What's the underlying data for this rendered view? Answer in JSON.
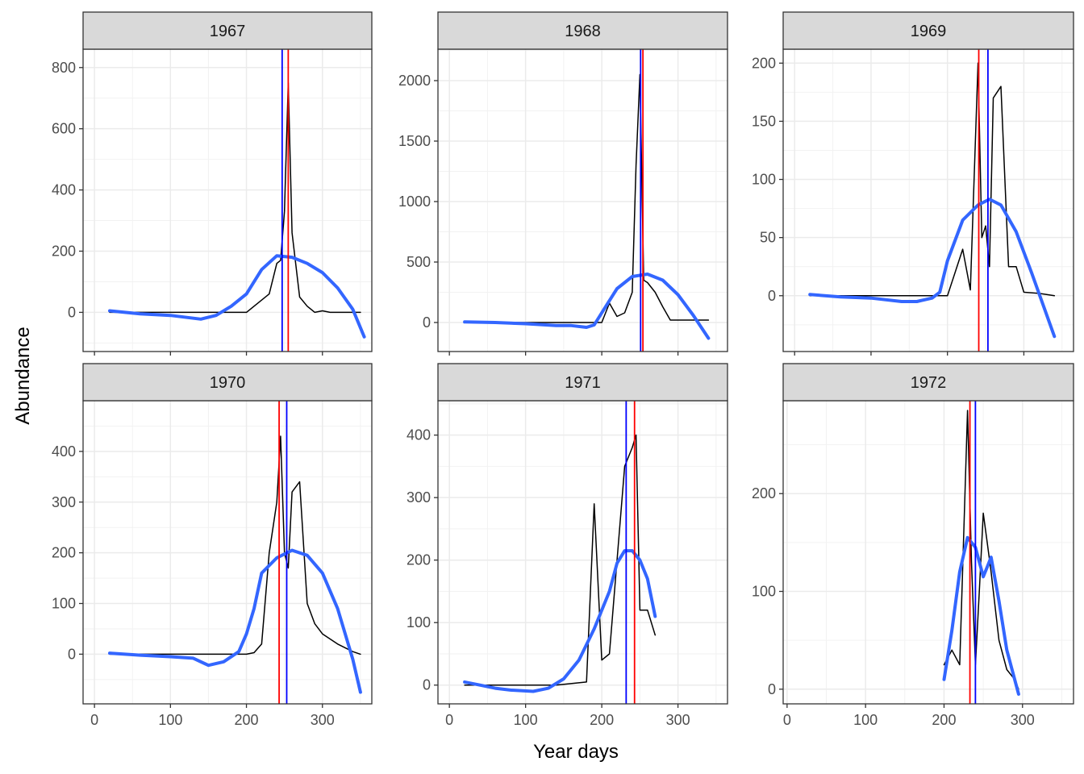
{
  "figure": {
    "xlabel": "Year days",
    "ylabel": "Abundance"
  },
  "chart_data": [
    {
      "type": "line",
      "panel": "1967",
      "xlim": [
        -15,
        365
      ],
      "ylim": [
        -128,
        860
      ],
      "xticks": [
        0,
        100,
        200,
        300
      ],
      "yticks": [
        0,
        200,
        400,
        600,
        800
      ],
      "grid": true,
      "series": [
        {
          "color": "#000000",
          "x": [
            20,
            60,
            100,
            140,
            180,
            200,
            220,
            230,
            240,
            245,
            250,
            255,
            260,
            270,
            280,
            290,
            300,
            310,
            320,
            330,
            350
          ],
          "y": [
            0,
            0,
            0,
            0,
            0,
            0,
            40,
            60,
            160,
            170,
            330,
            750,
            260,
            50,
            20,
            0,
            5,
            0,
            0,
            0,
            0
          ]
        },
        {
          "color": "#3366FF",
          "x": [
            20,
            60,
            100,
            140,
            160,
            180,
            200,
            220,
            240,
            260,
            280,
            300,
            320,
            340,
            355
          ],
          "y": [
            5,
            -5,
            -10,
            -22,
            -10,
            20,
            60,
            140,
            185,
            180,
            160,
            130,
            80,
            10,
            -80
          ]
        }
      ],
      "vlines": [
        {
          "x": 247,
          "color": "#0000FF"
        },
        {
          "x": 255,
          "color": "#FF0000"
        }
      ]
    },
    {
      "type": "line",
      "panel": "1968",
      "xlim": [
        -15,
        365
      ],
      "ylim": [
        -240,
        2260
      ],
      "xticks": [
        0,
        100,
        200,
        300
      ],
      "yticks": [
        0,
        500,
        1000,
        1500,
        2000
      ],
      "grid": true,
      "series": [
        {
          "color": "#000000",
          "x": [
            20,
            60,
            100,
            140,
            180,
            200,
            210,
            220,
            230,
            240,
            245,
            250,
            255,
            260,
            270,
            280,
            290,
            300,
            320,
            340
          ],
          "y": [
            0,
            0,
            0,
            0,
            0,
            0,
            160,
            50,
            80,
            250,
            1300,
            2050,
            350,
            330,
            250,
            130,
            20,
            20,
            20,
            20
          ]
        },
        {
          "color": "#3366FF",
          "x": [
            20,
            60,
            100,
            140,
            160,
            180,
            190,
            200,
            220,
            240,
            260,
            280,
            300,
            320,
            340
          ],
          "y": [
            5,
            0,
            -10,
            -25,
            -25,
            -40,
            -20,
            80,
            280,
            380,
            400,
            350,
            230,
            60,
            -130
          ]
        }
      ],
      "vlines": [
        {
          "x": 251,
          "color": "#0000FF"
        },
        {
          "x": 254,
          "color": "#FF0000"
        }
      ]
    },
    {
      "type": "line",
      "panel": "1969",
      "xlim": [
        -15,
        365
      ],
      "ylim": [
        -48,
        212
      ],
      "xticks": [
        0,
        100,
        200,
        300
      ],
      "yticks": [
        0,
        50,
        100,
        150,
        200
      ],
      "grid": true,
      "series": [
        {
          "color": "#000000",
          "x": [
            20,
            60,
            100,
            140,
            180,
            200,
            210,
            220,
            230,
            240,
            245,
            250,
            255,
            260,
            270,
            280,
            290,
            300,
            320,
            340
          ],
          "y": [
            0,
            0,
            0,
            0,
            0,
            0,
            20,
            40,
            5,
            200,
            50,
            60,
            25,
            170,
            180,
            25,
            25,
            3,
            2,
            0
          ]
        },
        {
          "color": "#3366FF",
          "x": [
            20,
            60,
            100,
            140,
            160,
            180,
            190,
            200,
            220,
            240,
            255,
            270,
            290,
            310,
            340
          ],
          "y": [
            1,
            -1,
            -2,
            -5,
            -5,
            -2,
            3,
            30,
            65,
            78,
            83,
            78,
            55,
            20,
            -35
          ]
        }
      ],
      "vlines": [
        {
          "x": 241,
          "color": "#FF0000"
        },
        {
          "x": 253,
          "color": "#0000FF"
        }
      ]
    },
    {
      "type": "line",
      "panel": "1970",
      "xlim": [
        -15,
        365
      ],
      "ylim": [
        -98,
        500
      ],
      "xticks": [
        0,
        100,
        200,
        300
      ],
      "yticks": [
        0,
        100,
        200,
        300,
        400
      ],
      "grid": true,
      "series": [
        {
          "color": "#000000",
          "x": [
            20,
            60,
            100,
            140,
            180,
            200,
            210,
            220,
            230,
            240,
            245,
            250,
            255,
            260,
            270,
            280,
            290,
            300,
            320,
            340,
            350
          ],
          "y": [
            0,
            0,
            0,
            0,
            0,
            0,
            3,
            20,
            200,
            300,
            430,
            200,
            170,
            320,
            340,
            100,
            60,
            40,
            20,
            5,
            0
          ]
        },
        {
          "color": "#3366FF",
          "x": [
            20,
            60,
            100,
            130,
            150,
            170,
            190,
            200,
            210,
            220,
            240,
            260,
            280,
            300,
            320,
            340,
            350
          ],
          "y": [
            2,
            -2,
            -5,
            -8,
            -22,
            -15,
            5,
            40,
            90,
            160,
            190,
            205,
            195,
            160,
            90,
            -10,
            -75
          ]
        }
      ],
      "vlines": [
        {
          "x": 243,
          "color": "#FF0000"
        },
        {
          "x": 253,
          "color": "#0000FF"
        }
      ]
    },
    {
      "type": "line",
      "panel": "1971",
      "xlim": [
        -15,
        365
      ],
      "ylim": [
        -30,
        455
      ],
      "xticks": [
        0,
        100,
        200,
        300
      ],
      "yticks": [
        0,
        100,
        200,
        300,
        400
      ],
      "grid": true,
      "series": [
        {
          "color": "#000000",
          "x": [
            20,
            60,
            100,
            140,
            180,
            190,
            200,
            210,
            230,
            240,
            245,
            250,
            260,
            270
          ],
          "y": [
            0,
            0,
            0,
            0,
            5,
            290,
            40,
            50,
            350,
            380,
            400,
            120,
            120,
            80
          ]
        },
        {
          "color": "#3366FF",
          "x": [
            20,
            40,
            60,
            80,
            110,
            130,
            150,
            170,
            190,
            210,
            220,
            230,
            240,
            250,
            260,
            270
          ],
          "y": [
            5,
            0,
            -5,
            -8,
            -10,
            -5,
            10,
            40,
            90,
            150,
            195,
            215,
            215,
            200,
            170,
            110
          ]
        }
      ],
      "vlines": [
        {
          "x": 232,
          "color": "#0000FF"
        },
        {
          "x": 243,
          "color": "#FF0000"
        }
      ]
    },
    {
      "type": "line",
      "panel": "1972",
      "xlim": [
        -5,
        365
      ],
      "ylim": [
        -15,
        295
      ],
      "xticks": [
        0,
        100,
        200,
        300
      ],
      "yticks": [
        0,
        100,
        200
      ],
      "grid": true,
      "series": [
        {
          "color": "#000000",
          "x": [
            200,
            210,
            220,
            230,
            235,
            240,
            245,
            250,
            255,
            260,
            270,
            280,
            290,
            295
          ],
          "y": [
            25,
            40,
            25,
            285,
            130,
            25,
            100,
            180,
            150,
            120,
            50,
            20,
            10,
            0
          ]
        },
        {
          "color": "#3366FF",
          "x": [
            200,
            210,
            220,
            230,
            240,
            250,
            255,
            260,
            270,
            280,
            295
          ],
          "y": [
            10,
            60,
            120,
            155,
            145,
            115,
            125,
            135,
            90,
            40,
            -5
          ]
        }
      ],
      "vlines": [
        {
          "x": 233,
          "color": "#FF0000"
        },
        {
          "x": 240,
          "color": "#0000FF"
        }
      ]
    }
  ]
}
